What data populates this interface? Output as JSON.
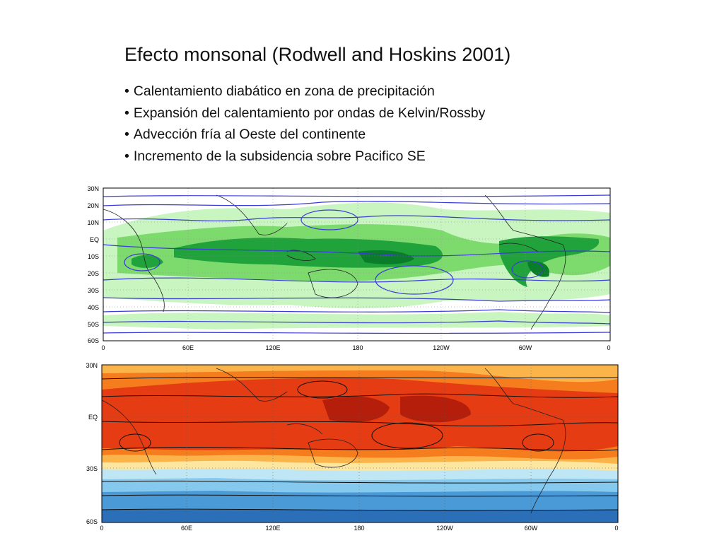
{
  "slide": {
    "title": "Efecto monsonal (Rodwell and Hoskins 2001)",
    "bullets": [
      "Calentamiento diabático en zona de precipitación",
      "Expansión del calentamiento por ondas de Kelvin/Rossby",
      "Advección fría al Oeste del continente",
      "Incremento de la subsidencia sobre Pacifico SE"
    ]
  },
  "map_top": {
    "lat_labels": [
      "30N",
      "20N",
      "10N",
      "EQ",
      "10S",
      "20S",
      "30S",
      "40S",
      "50S",
      "60S"
    ],
    "lon_labels": [
      "0",
      "60E",
      "120E",
      "180",
      "120W",
      "60W",
      "0"
    ],
    "field": "precipitation",
    "colors": {
      "light": "#c8f5c0",
      "mid": "#7ddb6e",
      "dark": "#1fa33a",
      "darkest": "#0a7d2a",
      "streamline": "#3b3bd8"
    }
  },
  "map_bottom": {
    "lat_labels": [
      "30N",
      "EQ",
      "30S",
      "60S"
    ],
    "lon_labels": [
      "0",
      "60E",
      "120E",
      "180",
      "120W",
      "60W",
      "0"
    ],
    "field": "temperature",
    "colors": {
      "darkred": "#b41e0a",
      "red": "#e63c14",
      "orange": "#f57d1e",
      "lightorange": "#fbb44a",
      "yellow": "#fde6a0",
      "paleblue": "#bfe6f5",
      "lightblue": "#86c9ee",
      "blue": "#4a9ad8",
      "deepblue": "#2b6fb8",
      "streamline": "#111111"
    }
  }
}
